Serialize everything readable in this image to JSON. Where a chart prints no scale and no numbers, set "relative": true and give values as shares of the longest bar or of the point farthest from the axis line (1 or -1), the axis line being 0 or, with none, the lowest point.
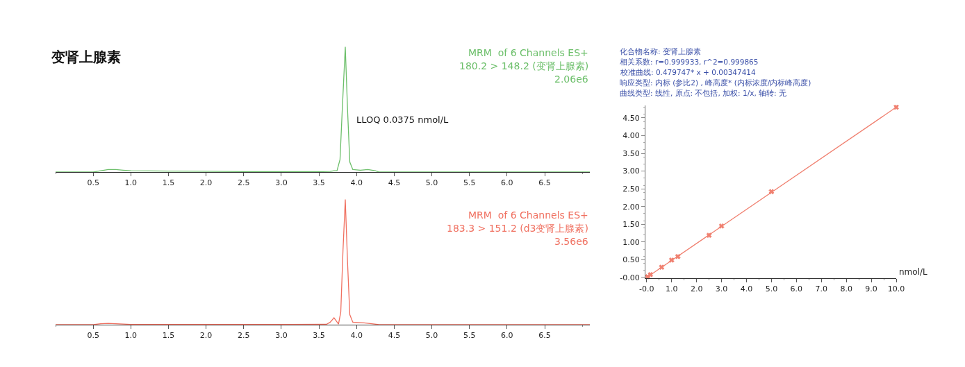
{
  "chart_data": [
    {
      "type": "line",
      "title": "变肾上腺素",
      "relative": true,
      "xlim": [
        0,
        7.1
      ],
      "xticks": [
        0.5,
        {
          "value": 1,
          "label": "1.0"
        },
        1.5,
        {
          "value": 2,
          "label": "2.0"
        },
        2.5,
        {
          "value": 3,
          "label": "3.0"
        },
        3.5,
        {
          "value": 4,
          "label": "4.0"
        },
        4.5,
        {
          "value": 5,
          "label": "5.0"
        },
        5.5,
        {
          "value": 6,
          "label": "6.0"
        },
        6.5
      ],
      "tick_labels": "x",
      "grid": false,
      "annotations": [
        "MRM  of 6 Channels ES+",
        "180.2 > 148.2 (变肾上腺素)",
        "2.06e6",
        {
          "text": "LLOQ 0.0375 nmol/L",
          "x": 3.85,
          "y": 0.42
        }
      ],
      "series": [
        {
          "color": "#6cbf6a",
          "x": [
            0.0,
            0.5,
            0.6,
            0.7,
            0.8,
            0.9,
            1.0,
            1.5,
            2.0,
            2.5,
            3.0,
            3.5,
            3.65,
            3.7,
            3.74,
            3.78,
            3.81,
            3.85,
            3.88,
            3.91,
            3.95,
            4.05,
            4.15,
            4.25,
            4.3,
            5.0,
            7.1
          ],
          "values": [
            0.0,
            0.0,
            0.01,
            0.02,
            0.02,
            0.015,
            0.01,
            0.008,
            0.006,
            0.004,
            0.003,
            0.003,
            0.005,
            0.01,
            0.01,
            0.1,
            0.5,
            1.0,
            0.5,
            0.08,
            0.02,
            0.015,
            0.02,
            0.01,
            0.0,
            0.0,
            0.0
          ]
        }
      ]
    },
    {
      "type": "line",
      "relative": true,
      "xlim": [
        0,
        7.1
      ],
      "xticks": [
        0.5,
        {
          "value": 1,
          "label": "1.0"
        },
        1.5,
        {
          "value": 2,
          "label": "2.0"
        },
        2.5,
        {
          "value": 3,
          "label": "3.0"
        },
        3.5,
        {
          "value": 4,
          "label": "4.0"
        },
        4.5,
        {
          "value": 5,
          "label": "5.0"
        },
        5.5,
        {
          "value": 6,
          "label": "6.0"
        },
        6.5
      ],
      "tick_labels": "x",
      "grid": false,
      "annotations": [
        "MRM  of 6 Channels ES+",
        "183.3 > 151.2 (d3变肾上腺素)",
        "3.56e6"
      ],
      "series": [
        {
          "color": "#f07060",
          "x": [
            0.0,
            0.5,
            0.6,
            0.7,
            0.8,
            1.0,
            3.0,
            3.6,
            3.65,
            3.7,
            3.73,
            3.76,
            3.79,
            3.82,
            3.85,
            3.88,
            3.91,
            3.95,
            4.1,
            4.2,
            4.3,
            7.1
          ],
          "values": [
            0.0,
            0.0,
            0.008,
            0.01,
            0.008,
            0.002,
            0.002,
            0.003,
            0.02,
            0.055,
            0.03,
            0.005,
            0.1,
            0.6,
            1.0,
            0.5,
            0.08,
            0.02,
            0.015,
            0.008,
            0.0,
            0.0
          ]
        }
      ]
    },
    {
      "type": "scatter",
      "xlabel": "nmol/L",
      "xlim": [
        -0.05,
        10.0
      ],
      "ylim": [
        -0.02,
        4.85
      ],
      "grid": false,
      "xticks": [
        {
          "value": 0,
          "label": "-0.0"
        },
        {
          "value": 1,
          "label": "1.0"
        },
        {
          "value": 2,
          "label": "2.0"
        },
        {
          "value": 3,
          "label": "3.0"
        },
        {
          "value": 4,
          "label": "4.0"
        },
        {
          "value": 5,
          "label": "5.0"
        },
        {
          "value": 6,
          "label": "6.0"
        },
        {
          "value": 7,
          "label": "7.0"
        },
        {
          "value": 8,
          "label": "8.0"
        },
        {
          "value": 9,
          "label": "9.0"
        },
        {
          "value": 10,
          "label": "10.0"
        }
      ],
      "yticks": [
        {
          "value": 0,
          "label": "-0.00"
        },
        {
          "value": 0.5,
          "label": "0.50"
        },
        {
          "value": 1,
          "label": "1.00"
        },
        {
          "value": 1.5,
          "label": "1.50"
        },
        {
          "value": 2,
          "label": "2.00"
        },
        {
          "value": 2.5,
          "label": "2.50"
        },
        {
          "value": 3,
          "label": "3.00"
        },
        {
          "value": 3.5,
          "label": "3.50"
        },
        {
          "value": 4,
          "label": "4.00"
        },
        {
          "value": 4.5,
          "label": "4.50"
        }
      ],
      "annotations": [
        "化合物名称: 变肾上腺素",
        "相关系数: r=0.999933, r^2=0.999865",
        "校准曲线: 0.479747* x + 0.00347414",
        "响应类型: 内标 (参比2) , 峰高度* (内标浓度/内标峰高度)",
        "曲线类型: 线性, 原点: 不包括, 加权: 1/x, 轴转: 无"
      ],
      "series": [
        {
          "color": "#f08070",
          "marker": "cross",
          "x": [
            0.0375,
            0.15,
            0.6,
            1.0,
            1.25,
            2.5,
            3.0,
            5.0,
            10.0
          ],
          "values": [
            0.02,
            0.08,
            0.29,
            0.49,
            0.59,
            1.19,
            1.45,
            2.42,
            4.8
          ]
        },
        {
          "type": "line",
          "color": "#f08070",
          "x": [
            0,
            10
          ],
          "values": [
            0.0,
            4.8
          ]
        }
      ]
    }
  ]
}
